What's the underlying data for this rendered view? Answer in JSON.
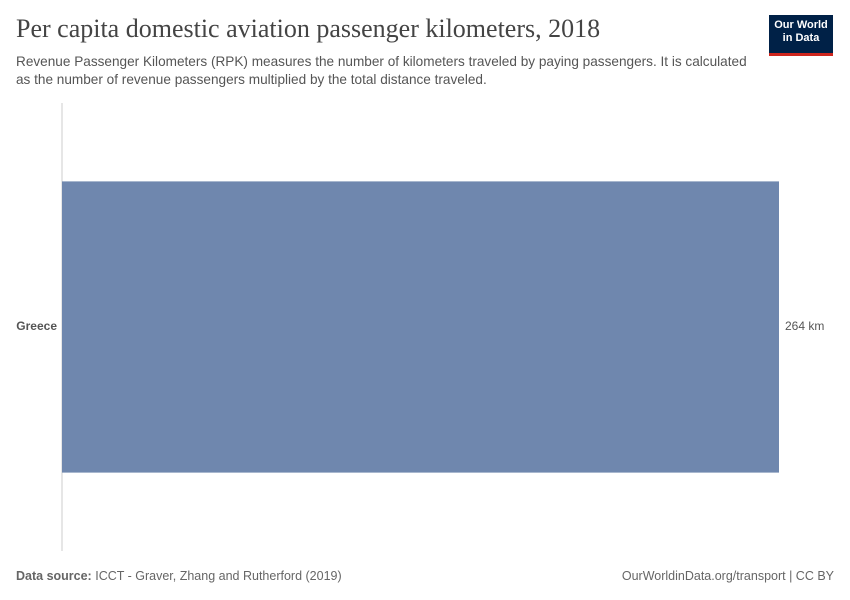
{
  "chart_data": {
    "type": "hbar",
    "title": "Per capita domestic aviation passenger kilometers, 2018",
    "subtitle": "Revenue Passenger Kilometers (RPK) measures the number of kilometers traveled by paying passengers. It is calculated as the number of revenue passengers multiplied by the total distance traveled.",
    "categories": [
      "Greece"
    ],
    "values": [
      264
    ],
    "value_labels": [
      "264 km"
    ],
    "color": "#6f87ae",
    "source_label": "Data source:",
    "source": "ICCT - Graver, Zhang and Rutherford (2019)",
    "footer_right": "OurWorldinData.org/transport | CC BY",
    "logo": "Our World in Data"
  }
}
